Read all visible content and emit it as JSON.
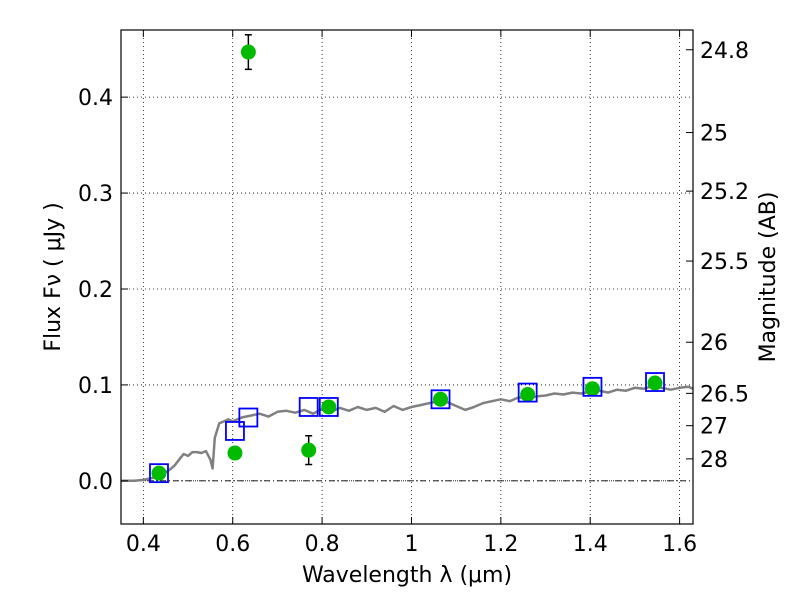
{
  "chart_data": {
    "type": "scatter",
    "xlabel": "Wavelength  λ (μm)",
    "ylabel": "Flux  Fν  ( μJy )",
    "y2label": "Magnitude (AB)",
    "xlim": [
      0.35,
      1.63
    ],
    "ylim": [
      -0.045,
      0.47
    ],
    "x_ticks": [
      0.4,
      0.6,
      0.8,
      1.0,
      1.2,
      1.4,
      1.6
    ],
    "x_tick_labels": [
      "0.4",
      "0.6",
      "0.8",
      "1",
      "1.2",
      "1.4",
      "1.6"
    ],
    "y_ticks": [
      0.0,
      0.1,
      0.2,
      0.3,
      0.4
    ],
    "y_tick_labels": [
      "0.0",
      "0.1",
      "0.2",
      "0.3",
      "0.4"
    ],
    "mag_ticks": [
      {
        "flux": 0.4494,
        "label": "24.8"
      },
      {
        "flux": 0.3631,
        "label": "25"
      },
      {
        "flux": 0.302,
        "label": "25.2"
      },
      {
        "flux": 0.2291,
        "label": "25.5"
      },
      {
        "flux": 0.1445,
        "label": "26"
      },
      {
        "flux": 0.0912,
        "label": "26.5"
      },
      {
        "flux": 0.0575,
        "label": "27"
      },
      {
        "flux": 0.0229,
        "label": "28"
      }
    ],
    "grid": true,
    "zero_line": true,
    "series": [
      {
        "role": "model_sed_line",
        "color": "#808080",
        "x": [
          0.35,
          0.38,
          0.4,
          0.42,
          0.44,
          0.46,
          0.47,
          0.48,
          0.49,
          0.5,
          0.51,
          0.52,
          0.53,
          0.54,
          0.55,
          0.555,
          0.56,
          0.57,
          0.58,
          0.59,
          0.6,
          0.62,
          0.64,
          0.66,
          0.68,
          0.7,
          0.72,
          0.74,
          0.76,
          0.78,
          0.8,
          0.82,
          0.84,
          0.86,
          0.88,
          0.9,
          0.92,
          0.94,
          0.96,
          0.98,
          1.0,
          1.02,
          1.04,
          1.06,
          1.08,
          1.1,
          1.12,
          1.14,
          1.16,
          1.18,
          1.2,
          1.22,
          1.24,
          1.26,
          1.28,
          1.3,
          1.32,
          1.34,
          1.36,
          1.38,
          1.4,
          1.42,
          1.44,
          1.46,
          1.48,
          1.5,
          1.52,
          1.54,
          1.56,
          1.58,
          1.6,
          1.62,
          1.63
        ],
        "y": [
          0.0,
          0.0,
          0.001,
          0.003,
          0.006,
          0.012,
          0.016,
          0.022,
          0.028,
          0.026,
          0.03,
          0.03,
          0.029,
          0.031,
          0.022,
          0.013,
          0.045,
          0.06,
          0.062,
          0.064,
          0.062,
          0.066,
          0.068,
          0.07,
          0.067,
          0.072,
          0.073,
          0.071,
          0.074,
          0.07,
          0.075,
          0.072,
          0.076,
          0.073,
          0.077,
          0.074,
          0.076,
          0.072,
          0.078,
          0.074,
          0.077,
          0.079,
          0.081,
          0.083,
          0.082,
          0.078,
          0.074,
          0.077,
          0.081,
          0.083,
          0.085,
          0.083,
          0.087,
          0.086,
          0.088,
          0.089,
          0.091,
          0.09,
          0.092,
          0.091,
          0.093,
          0.094,
          0.092,
          0.095,
          0.094,
          0.097,
          0.096,
          0.099,
          0.097,
          0.095,
          0.097,
          0.098,
          0.096
        ]
      },
      {
        "role": "model_photometry",
        "marker": "square",
        "color": "#0000ff",
        "x": [
          0.435,
          0.605,
          0.635,
          0.77,
          0.815,
          1.065,
          1.26,
          1.405,
          1.545
        ],
        "y": [
          0.008,
          0.052,
          0.066,
          0.077,
          0.077,
          0.085,
          0.092,
          0.098,
          0.103
        ]
      },
      {
        "role": "observed_photometry",
        "marker": "circle",
        "color": "#00bb00",
        "x": [
          0.435,
          0.605,
          0.635,
          0.77,
          0.815,
          1.065,
          1.26,
          1.405,
          1.545
        ],
        "y": [
          0.008,
          0.029,
          0.447,
          0.032,
          0.077,
          0.085,
          0.09,
          0.096,
          0.102
        ],
        "yerr": [
          0.003,
          0.005,
          0.018,
          0.015,
          0.003,
          0.004,
          0.004,
          0.005,
          0.006
        ]
      }
    ]
  }
}
